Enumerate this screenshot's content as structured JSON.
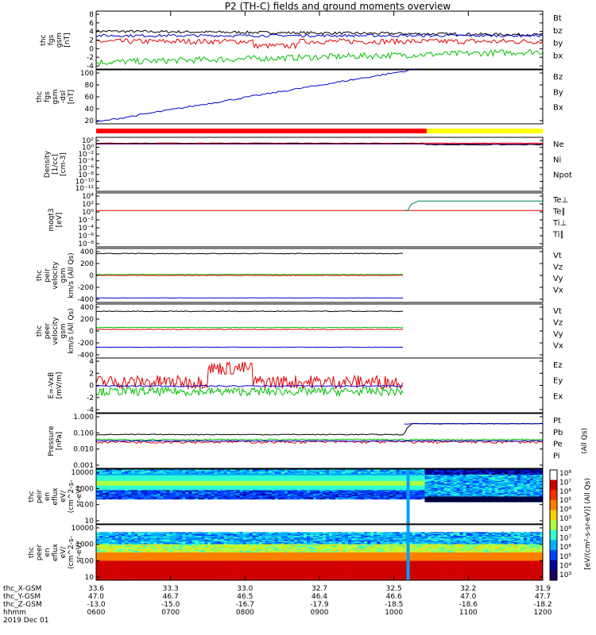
{
  "chart_data": {
    "title": "P2 (TH-C) fields and ground moments overview",
    "x_axis": {
      "rows": [
        {
          "label": "thc_X-GSM",
          "values": [
            "33.6",
            "33.3",
            "33.0",
            "32.7",
            "32.5",
            "32.2",
            "31.9"
          ]
        },
        {
          "label": "thc_Y-GSM",
          "values": [
            "47.0",
            "46.7",
            "46.5",
            "46.4",
            "46.6",
            "47.0",
            "47.7"
          ]
        },
        {
          "label": "thc_Z-GSM",
          "values": [
            "-13.0",
            "-15.0",
            "-16.7",
            "-17.9",
            "-18.5",
            "-18.6",
            "-18.2"
          ]
        },
        {
          "label": "hhmm",
          "values": [
            "0600",
            "0700",
            "0800",
            "0900",
            "1000",
            "1100",
            "1200"
          ]
        }
      ],
      "date": "2019 Dec 01"
    },
    "panels": [
      {
        "type": "line",
        "ylabel": [
          "thc",
          "fgs",
          "gsm",
          "[nT]"
        ],
        "ylim": [
          -4,
          9
        ],
        "yticks": [
          "8",
          "6",
          "4",
          "2",
          "0",
          "-2",
          "-4"
        ],
        "legend": [
          {
            "name": "Bt",
            "color": "#000000"
          },
          {
            "name": "bz",
            "color": "#e00000"
          },
          {
            "name": "by",
            "color": "#00c000"
          },
          {
            "name": "bx",
            "color": "#0000d0"
          }
        ]
      },
      {
        "type": "line",
        "ylabel": [
          "thc",
          "fgs",
          "gsm",
          "-dsl",
          "[nT]"
        ],
        "ylim": [
          5,
          100
        ],
        "yticks": [
          "100",
          "80",
          "60",
          "40",
          "20"
        ],
        "legend": [
          {
            "name": "Bz",
            "color": "#e00000"
          },
          {
            "name": "By",
            "color": "#00c000"
          },
          {
            "name": "Bx",
            "color": "#0000d0"
          }
        ]
      },
      {
        "type": "line",
        "ylabel": [
          "Density",
          "[1/cc]",
          "[cm-3]"
        ],
        "ylim": [
          1e-12,
          100
        ],
        "yscale": "log",
        "yticks": [
          "10²",
          "10⁰",
          "10⁻²",
          "10⁻⁴",
          "10⁻⁶",
          "10⁻⁸",
          "10⁻¹⁰",
          "10⁻¹²"
        ],
        "legend": [
          {
            "name": "Ne",
            "color": "#e00000"
          },
          {
            "name": "Ni",
            "color": "#000000"
          },
          {
            "name": "Npot",
            "color": "#0000d0"
          }
        ]
      },
      {
        "type": "line",
        "ylabel": [
          "moqt3",
          "[eV]"
        ],
        "ylim": [
          1e-08,
          10000.0
        ],
        "yscale": "log",
        "yticks": [
          "10⁴",
          "10²",
          "10⁰",
          "10⁻²",
          "10⁻⁴",
          "10⁻⁶",
          "10⁻⁸"
        ],
        "legend": [
          {
            "name": "Te⊥",
            "color": "#e00000"
          },
          {
            "name": "Te∥",
            "color": "#000000"
          },
          {
            "name": "Ti⊥",
            "color": "#0000d0"
          },
          {
            "name": "Ti∥",
            "color": "#00c000"
          }
        ]
      },
      {
        "type": "line",
        "ylabel": [
          "thc",
          "peir",
          "velocity",
          "gsm",
          "km/s (All Qs)"
        ],
        "ylim": [
          -450,
          450
        ],
        "yticks": [
          "400",
          "200",
          "0",
          "-200",
          "-400"
        ],
        "series_levels": {
          "Vt": 365,
          "Vz": 0,
          "Vy": 15,
          "Vx": -375
        },
        "legend": [
          {
            "name": "Vt",
            "color": "#000000"
          },
          {
            "name": "Vz",
            "color": "#e00000"
          },
          {
            "name": "Vy",
            "color": "#00c000"
          },
          {
            "name": "Vx",
            "color": "#0000d0"
          }
        ]
      },
      {
        "type": "line",
        "ylabel": [
          "thc",
          "peer",
          "velocity",
          "gsm",
          "km/s (All Qs)"
        ],
        "ylim": [
          -450,
          400
        ],
        "yticks": [
          "400",
          "200",
          "0",
          "-200",
          "-400"
        ],
        "series_levels": {
          "Vt": 285,
          "Vz": 0,
          "Vy": 30,
          "Vx": -280
        },
        "legend": [
          {
            "name": "Vt",
            "color": "#000000"
          },
          {
            "name": "Vz",
            "color": "#e00000"
          },
          {
            "name": "Vy",
            "color": "#00c000"
          },
          {
            "name": "Vx",
            "color": "#0000d0"
          }
        ]
      },
      {
        "type": "line",
        "ylabel": [
          "E=-VxB",
          "[mV/m]"
        ],
        "ylim": [
          -4,
          4
        ],
        "yticks": [
          "4",
          "2",
          "0",
          "-2",
          "-4"
        ],
        "legend": [
          {
            "name": "Ez",
            "color": "#e00000"
          },
          {
            "name": "Ey",
            "color": "#00c000"
          },
          {
            "name": "Ex",
            "color": "#0000d0"
          }
        ]
      },
      {
        "type": "line",
        "ylabel": [
          "Pressure",
          "[nPa]"
        ],
        "ylim": [
          0.0001,
          2
        ],
        "yscale": "log",
        "yticks": [
          "1.000",
          "0.100",
          "0.010",
          "0.001"
        ],
        "right_label": "(All Qs)",
        "legend": [
          {
            "name": "Pt",
            "color": "#000000"
          },
          {
            "name": "Pb",
            "color": "#e00000"
          },
          {
            "name": "Pe",
            "color": "#00c000"
          },
          {
            "name": "Pi",
            "color": "#0000d0"
          }
        ]
      },
      {
        "type": "heatmap",
        "ylabel": [
          "thc",
          "peir",
          "en",
          "eflux",
          "eV/",
          "(cm^2-s-",
          "sr-eV)"
        ],
        "ylim": [
          5,
          20000
        ],
        "yscale": "log",
        "yticks": [
          "10000",
          "1000",
          "100",
          "10"
        ],
        "colorbar_ticks": [
          "10⁸",
          "10⁷",
          "10⁶",
          "10⁵",
          "10⁴",
          "10³"
        ]
      },
      {
        "type": "heatmap",
        "ylabel": [
          "thc",
          "peer",
          "en",
          "eflux",
          "eV/",
          "(cm^2-s-",
          "sr-eV)"
        ],
        "ylim": [
          5,
          20000
        ],
        "yscale": "log",
        "yticks": [
          "10000",
          "1000",
          "100",
          "10"
        ],
        "colorbar_ticks": [
          "10⁸",
          "10⁷",
          "10⁶",
          "10⁵",
          "10⁴",
          "10³"
        ]
      }
    ],
    "colorbar_label": "[eV/(cm²-s-sr-eV)] (All Qs)",
    "data_mode_bar": [
      {
        "from": 0.0,
        "to": 0.74,
        "color": "#ff0000"
      },
      {
        "from": 0.74,
        "to": 1.0,
        "color": "#ffff00"
      }
    ]
  }
}
